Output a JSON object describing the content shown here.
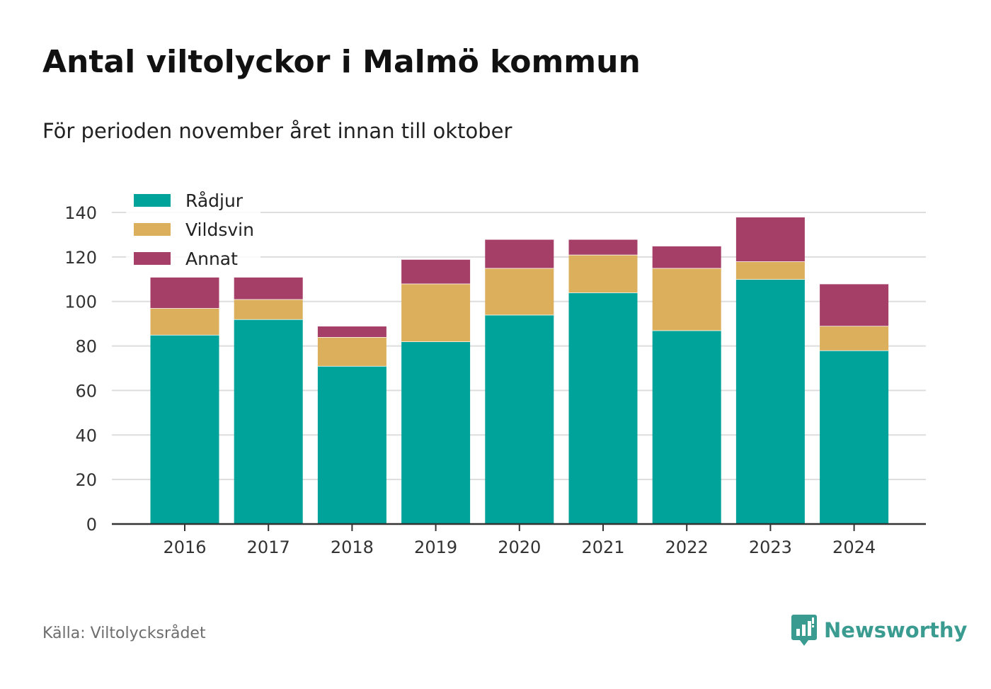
{
  "header": {
    "title": "Antal viltolyckor i Malmö kommun",
    "subtitle": "För perioden november året innan till oktober"
  },
  "footer": {
    "source": "Källa: Viltolycksrådet",
    "brand": "Newsworthy",
    "brand_icon": "bar-chart-speech-icon"
  },
  "colors": {
    "radjur": "#00a39a",
    "vildsvin": "#dbaf5c",
    "annat": "#a63f67",
    "grid": "#dddddd",
    "axis": "#333333",
    "brand": "#3a9b91"
  },
  "chart_data": {
    "type": "bar",
    "stacked": true,
    "categories": [
      "2016",
      "2017",
      "2018",
      "2019",
      "2020",
      "2021",
      "2022",
      "2023",
      "2024"
    ],
    "series": [
      {
        "name": "Rådjur",
        "color": "#00a39a",
        "values": [
          85,
          92,
          71,
          82,
          94,
          104,
          87,
          110,
          78
        ]
      },
      {
        "name": "Vildsvin",
        "color": "#dbaf5c",
        "values": [
          12,
          9,
          13,
          26,
          21,
          17,
          28,
          8,
          11
        ]
      },
      {
        "name": "Annat",
        "color": "#a63f67",
        "values": [
          14,
          10,
          5,
          11,
          13,
          7,
          10,
          20,
          19
        ]
      }
    ],
    "ylim": [
      0,
      140
    ],
    "yticks": [
      0,
      20,
      40,
      60,
      80,
      100,
      120,
      140
    ],
    "grid": true,
    "legend": "top-left"
  }
}
